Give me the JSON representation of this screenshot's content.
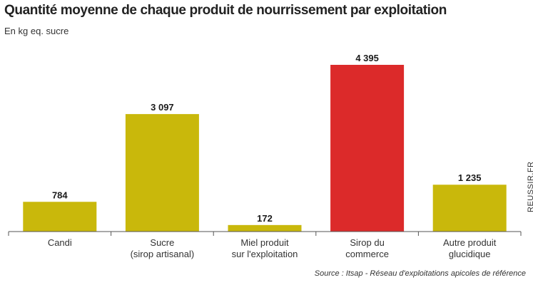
{
  "chart_data": {
    "type": "bar",
    "title": "Quantité moyenne de chaque produit de nourrissement par exploitation",
    "subtitle": "En kg eq. sucre",
    "categories": [
      [
        "Candi"
      ],
      [
        "Sucre",
        "(sirop artisanal)"
      ],
      [
        "Miel produit",
        "sur l'exploitation"
      ],
      [
        "Sirop du",
        "commerce"
      ],
      [
        "Autre produit",
        "glucidique"
      ]
    ],
    "values": [
      784,
      3097,
      172,
      4395,
      1235
    ],
    "value_labels": [
      "784",
      "3 097",
      "172",
      "4 395",
      "1 235"
    ],
    "colors": [
      "#c9b80b",
      "#c9b80b",
      "#c9b80b",
      "#dc2a2a",
      "#c9b80b"
    ],
    "ylim": [
      0,
      4395
    ],
    "grid": false,
    "legend": "none"
  },
  "source": "Source : Itsap - Réseau d'exploitations apicoles de référence",
  "credit": "REUSSIR.FR"
}
